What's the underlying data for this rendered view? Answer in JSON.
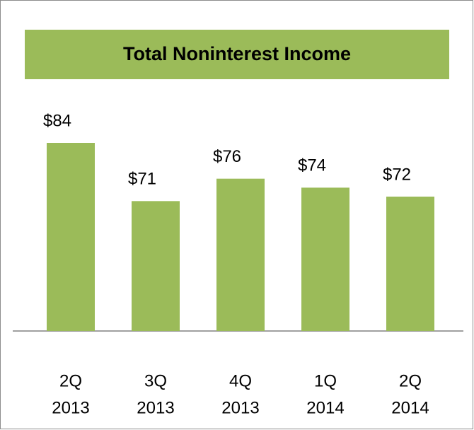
{
  "chart_data": {
    "type": "bar",
    "title": "Total Noninterest Income",
    "categories": [
      [
        "2Q",
        "2013"
      ],
      [
        "3Q",
        "2013"
      ],
      [
        "4Q",
        "2013"
      ],
      [
        "1Q",
        "2014"
      ],
      [
        "2Q",
        "2014"
      ]
    ],
    "values": [
      84,
      71,
      76,
      74,
      72
    ],
    "value_labels": [
      "$84",
      "$71",
      "$76",
      "$74",
      "$72"
    ],
    "color": "#9bbb59",
    "ylim": [
      42,
      90
    ]
  }
}
